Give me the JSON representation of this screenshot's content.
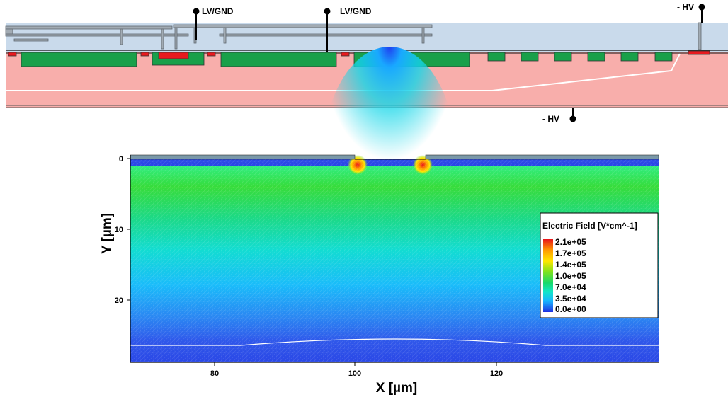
{
  "cross_section": {
    "terminals": [
      {
        "label": "LV/GND"
      },
      {
        "label": "LV/GND"
      },
      {
        "label": "- HV"
      },
      {
        "label": "- HV"
      }
    ],
    "colors": {
      "oxide": "#c9daeb",
      "substrate": "#f8aeab",
      "implant_green": "#19a04a",
      "implant_red": "#e8191e",
      "metal": "#a2abb3"
    }
  },
  "field_plot": {
    "x_axis": {
      "label": "X [µm]",
      "ticks": [
        "80",
        "100",
        "120"
      ]
    },
    "y_axis": {
      "label": "Y [µm]",
      "ticks": [
        "0",
        "10",
        "20"
      ]
    },
    "legend": {
      "title": "Electric Field [V*cm^-1]",
      "entries": [
        "2.1e+05",
        "1.7e+05",
        "1.4e+05",
        "1.0e+05",
        "7.0e+04",
        "3.5e+04",
        "0.0e+00"
      ]
    },
    "colormap": [
      "#e8141a",
      "#ff9a00",
      "#ffe600",
      "#7ee21e",
      "#18d96a",
      "#12e6c8",
      "#18b4ff",
      "#2a5df2",
      "#1f2fe0"
    ]
  }
}
